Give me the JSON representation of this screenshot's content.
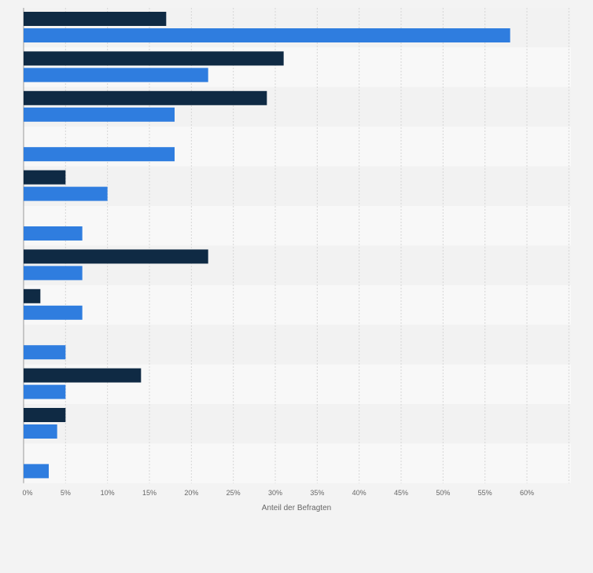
{
  "chart_data": {
    "type": "bar",
    "orientation": "horizontal",
    "xlabel": "Anteil der Befragten",
    "xlim": [
      0,
      65
    ],
    "x_ticks": [
      "0%",
      "5%",
      "10%",
      "15%",
      "20%",
      "25%",
      "30%",
      "35%",
      "40%",
      "45%",
      "50%",
      "55%",
      "60%"
    ],
    "x_tick_values": [
      0,
      5,
      10,
      15,
      20,
      25,
      30,
      35,
      40,
      45,
      50,
      55,
      60
    ],
    "grid": true,
    "categories": [
      "",
      "",
      "",
      "",
      "",
      "",
      "",
      "",
      "",
      "",
      "",
      ""
    ],
    "series": [
      {
        "color": "#0f2a44",
        "values": [
          17,
          31,
          29,
          null,
          5,
          null,
          22,
          2,
          null,
          14,
          5,
          null
        ]
      },
      {
        "color": "#2f7ddf",
        "values": [
          58,
          22,
          18,
          18,
          10,
          7,
          7,
          7,
          5,
          5,
          4,
          3
        ]
      }
    ]
  }
}
